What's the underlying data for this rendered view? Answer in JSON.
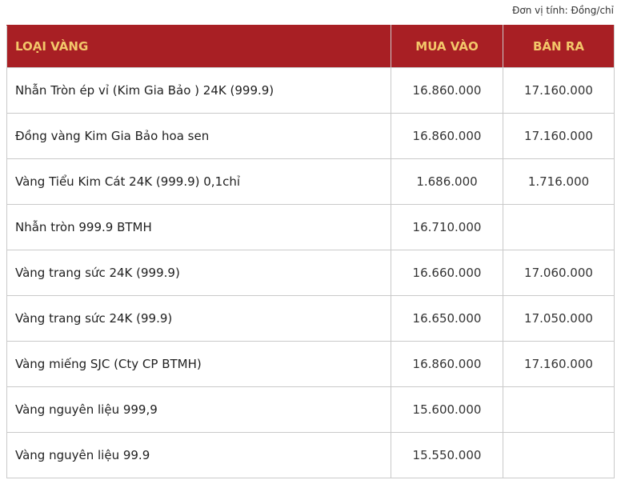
{
  "unit_note": "Đơn vị tính: Đồng/chỉ",
  "table": {
    "headers": {
      "type": "LOẠI VÀNG",
      "buy": "MUA VÀO",
      "sell": "BÁN RA"
    },
    "rows": [
      {
        "name": "Nhẫn Tròn ép vỉ (Kim Gia Bảo ) 24K (999.9)",
        "buy": "16.860.000",
        "sell": "17.160.000"
      },
      {
        "name": "Đồng vàng Kim Gia Bảo hoa sen",
        "buy": "16.860.000",
        "sell": "17.160.000"
      },
      {
        "name": "Vàng Tiểu Kim Cát 24K (999.9) 0,1chỉ",
        "buy": "1.686.000",
        "sell": "1.716.000"
      },
      {
        "name": "Nhẫn tròn 999.9 BTMH",
        "buy": "16.710.000",
        "sell": ""
      },
      {
        "name": "Vàng trang sức 24K (999.9)",
        "buy": "16.660.000",
        "sell": "17.060.000"
      },
      {
        "name": "Vàng trang sức 24K (99.9)",
        "buy": "16.650.000",
        "sell": "17.050.000"
      },
      {
        "name": "Vàng miếng SJC (Cty CP BTMH)",
        "buy": "16.860.000",
        "sell": "17.160.000"
      },
      {
        "name": "Vàng nguyên liệu 999,9",
        "buy": "15.600.000",
        "sell": ""
      },
      {
        "name": "Vàng nguyên liệu 99.9",
        "buy": "15.550.000",
        "sell": ""
      }
    ]
  },
  "colors": {
    "header_bg": "#a81f24",
    "header_text": "#f3c76a",
    "border": "#c9c9c9"
  }
}
